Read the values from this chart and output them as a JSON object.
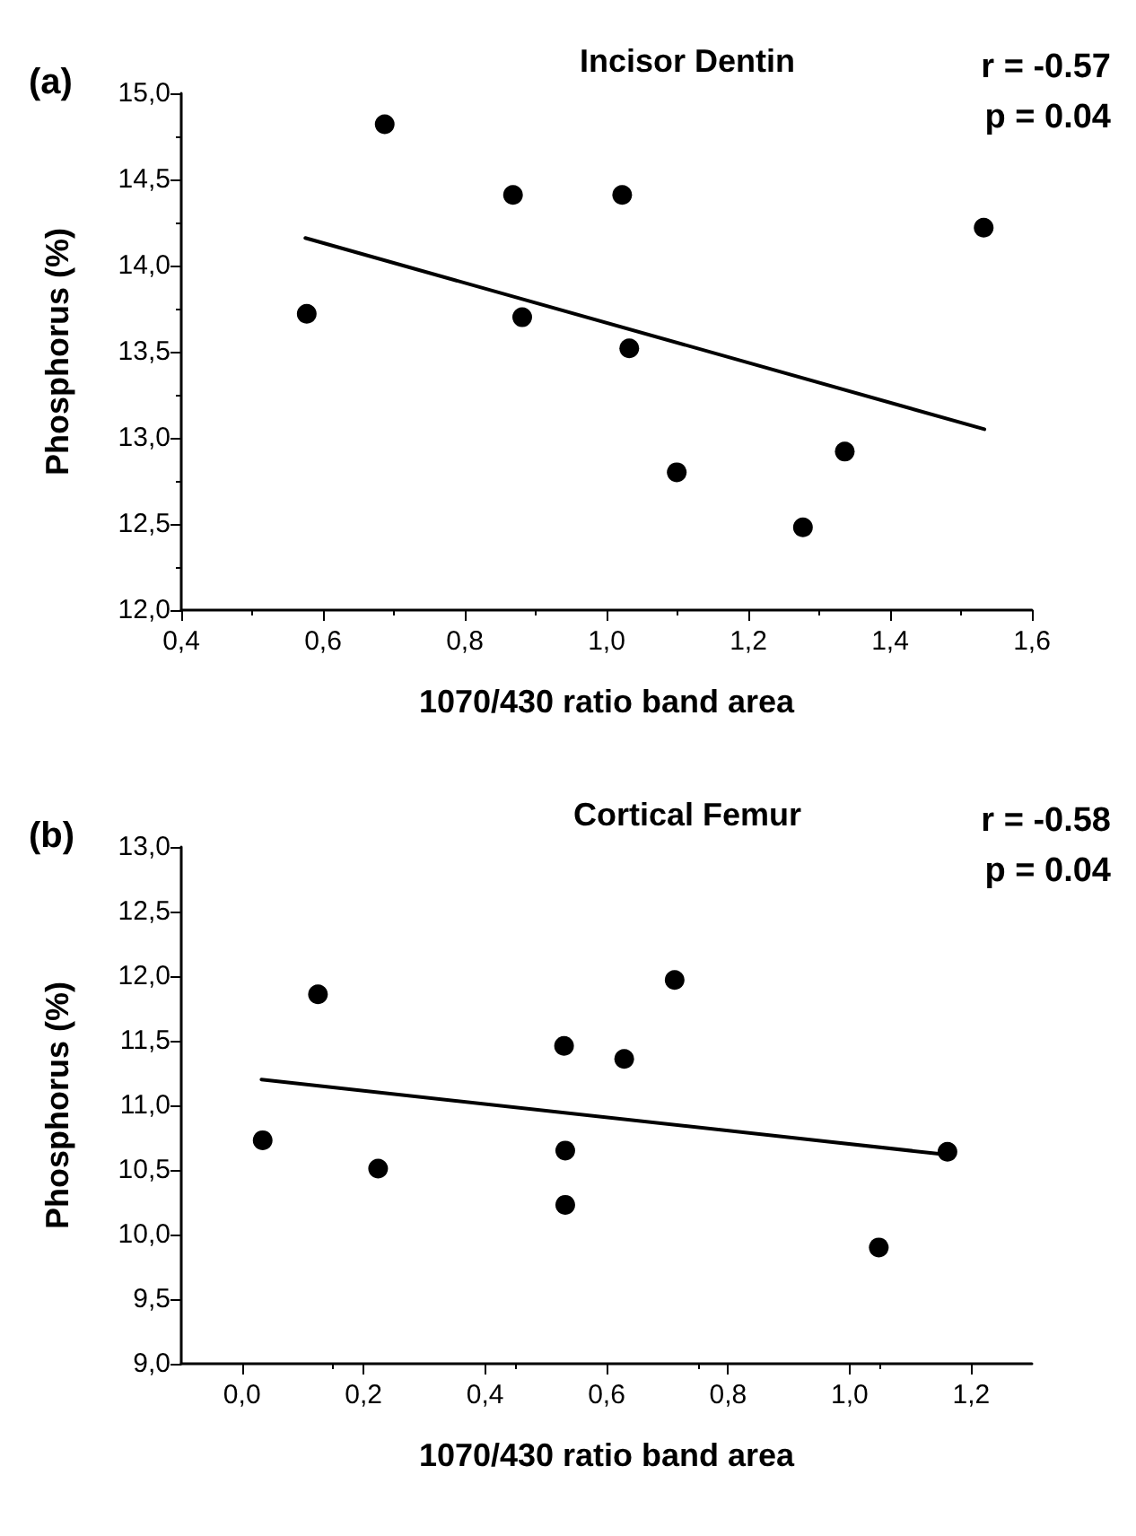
{
  "chart_data": [
    {
      "type": "scatter",
      "title": "Incisor Dentin",
      "xlabel": "1070/430 ratio band area",
      "ylabel": "Phosphorus (%)",
      "annotations": [
        "(a)",
        "r = -0.57",
        "p = 0.04"
      ],
      "marker": "circle",
      "grid": false,
      "xlim": [
        0.4,
        1.6
      ],
      "xticks": [
        {
          "value": 0.4,
          "label": "0,4"
        },
        {
          "value": 0.6,
          "label": "0,6"
        },
        {
          "value": 0.8,
          "label": "0,8"
        },
        {
          "value": 1.0,
          "label": "1,0"
        },
        {
          "value": 1.2,
          "label": "1,2"
        },
        {
          "value": 1.4,
          "label": "1,4"
        },
        {
          "value": 1.6,
          "label": "1,6"
        }
      ],
      "ylim": [
        12,
        15
      ],
      "yticks": [
        {
          "value": 12,
          "label": "12,0"
        },
        {
          "value": 12.5,
          "label": "12,5"
        },
        {
          "value": 13,
          "label": "13,0"
        },
        {
          "value": 13.5,
          "label": "13,5"
        },
        {
          "value": 14,
          "label": "14,0"
        },
        {
          "value": 14.5,
          "label": "14,5"
        },
        {
          "value": 15,
          "label": "15,0"
        }
      ],
      "series": [
        {
          "type": "scatter",
          "color": "#000000",
          "x": [
            0.577,
            0.687,
            0.868,
            1.022,
            0.881,
            1.032,
            1.099,
            1.277,
            1.336,
            1.532
          ],
          "values": [
            13.72,
            14.82,
            14.41,
            14.41,
            13.7,
            13.52,
            12.8,
            12.48,
            12.92,
            14.22
          ]
        },
        {
          "type": "line",
          "color": "#000000",
          "marker": "none",
          "line_style": "solid",
          "x": [
            0.575,
            1.533
          ],
          "values": [
            14.16,
            13.05
          ]
        }
      ]
    },
    {
      "type": "scatter",
      "title": "Cortical Femur",
      "xlabel": "1070/430 ratio band area",
      "ylabel": "Phosphorus (%)",
      "annotations": [
        "(b)",
        "r = -0.58",
        "p = 0.04"
      ],
      "marker": "circle",
      "grid": false,
      "xlim": [
        -0.1,
        1.3
      ],
      "xticks": [
        {
          "value": 0,
          "label": "0,0"
        },
        {
          "value": 0.2,
          "label": "0,2"
        },
        {
          "value": 0.4,
          "label": "0,4"
        },
        {
          "value": 0.6,
          "label": "0,6"
        },
        {
          "value": 0.8,
          "label": "0,8"
        },
        {
          "value": 1.0,
          "label": "1,0"
        },
        {
          "value": 1.2,
          "label": "1,2"
        }
      ],
      "ylim": [
        9,
        13
      ],
      "yticks": [
        {
          "value": 9,
          "label": "9,0"
        },
        {
          "value": 9.5,
          "label": "9,5"
        },
        {
          "value": 10,
          "label": "10,0"
        },
        {
          "value": 10.5,
          "label": "10,5"
        },
        {
          "value": 11,
          "label": "11,0"
        },
        {
          "value": 11.5,
          "label": "11,5"
        },
        {
          "value": 12,
          "label": "12,0"
        },
        {
          "value": 12.5,
          "label": "12,5"
        },
        {
          "value": 13,
          "label": "13,0"
        }
      ],
      "series": [
        {
          "type": "scatter",
          "color": "#000000",
          "x": [
            0.034,
            0.125,
            0.224,
            0.53,
            0.532,
            0.532,
            0.629,
            0.712,
            1.048,
            1.161
          ],
          "values": [
            10.73,
            11.86,
            10.51,
            11.46,
            10.65,
            10.23,
            11.36,
            11.97,
            9.9,
            10.64
          ]
        },
        {
          "type": "line",
          "color": "#000000",
          "marker": "none",
          "line_style": "solid",
          "x": [
            0.032,
            1.157
          ],
          "values": [
            11.2,
            10.62
          ]
        }
      ]
    }
  ]
}
